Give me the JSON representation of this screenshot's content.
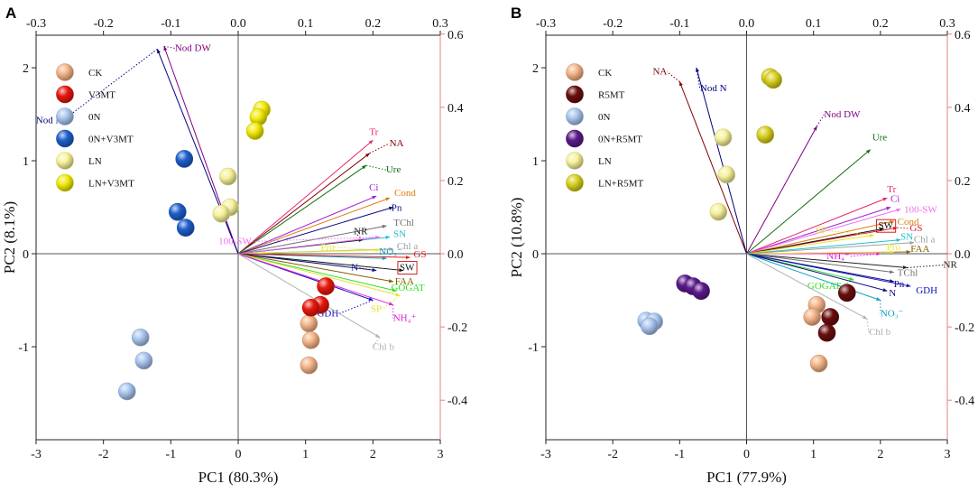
{
  "figure": {
    "panels": [
      "A",
      "B"
    ]
  },
  "chart_data": [
    {
      "type": "scatter",
      "panel": "A",
      "xlabel": "PC1 (80.3%)",
      "ylabel": "PC2 (8.1%)",
      "xlim": [
        -3,
        3
      ],
      "ylim": [
        -2,
        2.35
      ],
      "x_ticks": [
        "-3",
        "-2",
        "-1",
        "0",
        "1",
        "2",
        "3"
      ],
      "y_ticks": [
        "-1",
        "0",
        "1",
        "2"
      ],
      "top_ticks": [
        "-0.3",
        "-0.2",
        "-0.1",
        "0.0",
        "0.1",
        "0.2",
        "0.3"
      ],
      "right_ticks": [
        "-0.4",
        "-0.2",
        "0.0",
        "0.2",
        "0.4",
        "0.6"
      ],
      "legend": [
        {
          "name": "CK",
          "color": "#f4b488"
        },
        {
          "name": "V3MT",
          "color": "#e8180e"
        },
        {
          "name": "0N",
          "color": "#a9c5ee"
        },
        {
          "name": "0N+V3MT",
          "color": "#1f5fcc"
        },
        {
          "name": "LN",
          "color": "#f6f29a"
        },
        {
          "name": "LN+V3MT",
          "color": "#f2ea0a"
        }
      ],
      "groups": [
        {
          "name": "CK",
          "points": [
            [
              1.05,
              -0.75
            ],
            [
              1.08,
              -0.93
            ],
            [
              1.05,
              -1.2
            ]
          ]
        },
        {
          "name": "V3MT",
          "points": [
            [
              1.3,
              -0.35
            ],
            [
              1.22,
              -0.55
            ],
            [
              1.08,
              -0.58
            ]
          ]
        },
        {
          "name": "0N",
          "points": [
            [
              -1.45,
              -0.9
            ],
            [
              -1.4,
              -1.15
            ],
            [
              -1.65,
              -1.48
            ]
          ]
        },
        {
          "name": "0N+V3MT",
          "points": [
            [
              -0.8,
              1.02
            ],
            [
              -0.9,
              0.45
            ],
            [
              -0.78,
              0.28
            ]
          ]
        },
        {
          "name": "LN",
          "points": [
            [
              -0.15,
              0.83
            ],
            [
              -0.12,
              0.5
            ],
            [
              -0.25,
              0.43
            ]
          ]
        },
        {
          "name": "LN+V3MT",
          "points": [
            [
              0.35,
              1.55
            ],
            [
              0.3,
              1.47
            ],
            [
              0.25,
              1.32
            ]
          ]
        }
      ],
      "loadings": [
        {
          "name": "Nod DW",
          "label": "Nod DW",
          "x": -1.1,
          "y": 2.23,
          "color": "#800080",
          "dx": 12,
          "dy": 5
        },
        {
          "name": "Nod N",
          "label": "Nod N",
          "x": -1.2,
          "y": 2.2,
          "color": "#000080",
          "dx": -105,
          "dy": 82
        },
        {
          "name": "Tr",
          "label": "Tr",
          "x": 2.0,
          "y": 1.22,
          "color": "#e8246e",
          "dx": -4,
          "dy": -6
        },
        {
          "name": "NA",
          "label": "NA",
          "x": 1.95,
          "y": 1.08,
          "color": "#800000",
          "dx": 22,
          "dy": -8
        },
        {
          "name": "Ure",
          "label": "Ure",
          "x": 1.9,
          "y": 0.95,
          "color": "#107010",
          "dx": 22,
          "dy": 8
        },
        {
          "name": "Ci",
          "label": "Ci",
          "x": 2.05,
          "y": 0.62,
          "color": "#9d20d8",
          "dx": -8,
          "dy": -6
        },
        {
          "name": "Cond",
          "label": "Cond",
          "x": 2.25,
          "y": 0.6,
          "color": "#e07a10",
          "dx": 5,
          "dy": -2
        },
        {
          "name": "Pn",
          "label": "Pn",
          "x": 2.3,
          "y": 0.5,
          "color": "#101080",
          "dx": -2,
          "dy": 4
        },
        {
          "name": "TChl",
          "label": "TChl",
          "x": 2.2,
          "y": 0.3,
          "color": "#707070",
          "dx": 8,
          "dy": 0
        },
        {
          "name": "SN",
          "label": "SN",
          "x": 2.25,
          "y": 0.18,
          "color": "#20c0d0",
          "dx": 4,
          "dy": 0
        },
        {
          "name": "NR",
          "label": "NR",
          "x": 1.85,
          "y": 0.15,
          "color": "#222222",
          "dx": -10,
          "dy": -6
        },
        {
          "name": "100-SW",
          "label": "100-SW",
          "x": 2.1,
          "y": 0.18,
          "color": "#f070f0",
          "dx": -142,
          "dy": 8
        },
        {
          "name": "Chl a",
          "label": "Chl a",
          "x": 2.3,
          "y": 0.05,
          "color": "#a0a0a0",
          "dx": 4,
          "dy": 0
        },
        {
          "name": "Pro",
          "label": "Pro",
          "x": 2.1,
          "y": 0.04,
          "color": "#e8e830",
          "dx": -50,
          "dy": 0
        },
        {
          "name": "NO3-",
          "label": "NO₃⁻",
          "x": 2.2,
          "y": -0.05,
          "color": "#10a0c0",
          "dx": -8,
          "dy": -4
        },
        {
          "name": "GS",
          "label": "GS",
          "x": 2.55,
          "y": -0.04,
          "color": "#e02020",
          "dx": 4,
          "dy": 0
        },
        {
          "name": "SW",
          "label": "SW",
          "x": 2.45,
          "y": -0.18,
          "color": "#111111",
          "dx": -4,
          "dy": 0,
          "boxed": true
        },
        {
          "name": "N",
          "label": "N",
          "x": 2.05,
          "y": -0.18,
          "color": "#101080",
          "dx": -20,
          "dy": 0
        },
        {
          "name": "FAA",
          "label": "FAA",
          "x": 2.3,
          "y": -0.3,
          "color": "#806000",
          "dx": 2,
          "dy": 3
        },
        {
          "name": "GOGAT",
          "label": "GOGAT",
          "x": 2.35,
          "y": -0.4,
          "color": "#30e020",
          "dx": -6,
          "dy": 0
        },
        {
          "name": "SP",
          "label": "SP",
          "x": 2.4,
          "y": -0.45,
          "color": "#e8e030",
          "dx": -20,
          "dy": 18
        },
        {
          "name": "GDH",
          "label": "GDH",
          "x": 2.0,
          "y": -0.5,
          "color": "#1010c0",
          "dx": -38,
          "dy": 18
        },
        {
          "name": "NH4+",
          "label": "NH₄⁺",
          "x": 2.3,
          "y": -0.55,
          "color": "#e020e0",
          "dx": 0,
          "dy": 18
        },
        {
          "name": "Chl b",
          "label": "Chl b",
          "x": 2.1,
          "y": -0.9,
          "color": "#b0b0b0",
          "dx": -8,
          "dy": 14
        }
      ]
    },
    {
      "type": "scatter",
      "panel": "B",
      "xlabel": "PC1 (77.9%)",
      "ylabel": "PC2 (10.8%)",
      "xlim": [
        -3,
        3
      ],
      "ylim": [
        -2,
        2.35
      ],
      "x_ticks": [
        "-3",
        "-2",
        "-1",
        "0",
        "1",
        "2",
        "3"
      ],
      "y_ticks": [
        "-1",
        "0",
        "1",
        "2"
      ],
      "top_ticks": [
        "-0.3",
        "-0.2",
        "-0.1",
        "0.0",
        "0.1",
        "0.2",
        "0.3"
      ],
      "right_ticks": [
        "-0.4",
        "-0.2",
        "0.0",
        "0.2",
        "0.4",
        "0.6"
      ],
      "legend": [
        {
          "name": "CK",
          "color": "#f4b488"
        },
        {
          "name": "R5MT",
          "color": "#6a0e0e"
        },
        {
          "name": "0N",
          "color": "#a9c5ee"
        },
        {
          "name": "0N+R5MT",
          "color": "#5a1a8a"
        },
        {
          "name": "LN",
          "color": "#f6f29a"
        },
        {
          "name": "LN+R5MT",
          "color": "#d8d020"
        }
      ],
      "groups": [
        {
          "name": "CK",
          "points": [
            [
              1.05,
              -0.55
            ],
            [
              0.98,
              -0.68
            ],
            [
              1.08,
              -1.18
            ]
          ]
        },
        {
          "name": "R5MT",
          "points": [
            [
              1.5,
              -0.42
            ],
            [
              1.25,
              -0.68
            ],
            [
              1.2,
              -0.85
            ]
          ]
        },
        {
          "name": "0N",
          "points": [
            [
              -1.5,
              -0.72
            ],
            [
              -1.38,
              -0.73
            ],
            [
              -1.45,
              -0.78
            ]
          ]
        },
        {
          "name": "0N+R5MT",
          "points": [
            [
              -0.92,
              -0.32
            ],
            [
              -0.8,
              -0.35
            ],
            [
              -0.68,
              -0.4
            ]
          ]
        },
        {
          "name": "LN",
          "points": [
            [
              -0.35,
              1.25
            ],
            [
              -0.3,
              0.85
            ],
            [
              -0.42,
              0.45
            ]
          ]
        },
        {
          "name": "LN+R5MT",
          "points": [
            [
              0.35,
              1.9
            ],
            [
              0.4,
              1.87
            ],
            [
              0.28,
              1.28
            ]
          ]
        }
      ],
      "loadings": [
        {
          "name": "NA",
          "label": "NA",
          "x": -1.0,
          "y": 1.85,
          "color": "#800000",
          "dx": -14,
          "dy": -8
        },
        {
          "name": "Nod N",
          "label": "Nod N",
          "x": -0.75,
          "y": 2.0,
          "color": "#000080",
          "dx": 4,
          "dy": 26
        },
        {
          "name": "Nod DW",
          "label": "Nod DW",
          "x": 1.05,
          "y": 1.37,
          "color": "#800080",
          "dx": 8,
          "dy": -10
        },
        {
          "name": "Ure",
          "label": "Ure",
          "x": 1.85,
          "y": 1.12,
          "color": "#107010",
          "dx": 2,
          "dy": -10
        },
        {
          "name": "Tr",
          "label": "Tr",
          "x": 2.1,
          "y": 0.6,
          "color": "#e8246e",
          "dx": 0,
          "dy": -6
        },
        {
          "name": "Ci",
          "label": "Ci",
          "x": 2.15,
          "y": 0.5,
          "color": "#9d20d8",
          "dx": 0,
          "dy": -6
        },
        {
          "name": "100-SW",
          "label": "100-SW",
          "x": 2.3,
          "y": 0.48,
          "color": "#f070f0",
          "dx": 4,
          "dy": 4
        },
        {
          "name": "Cond",
          "label": "Cond",
          "x": 2.2,
          "y": 0.35,
          "color": "#e07a10",
          "dx": 4,
          "dy": 4
        },
        {
          "name": "GS",
          "label": "GS",
          "x": 2.25,
          "y": 0.28,
          "color": "#e02020",
          "dx": 14,
          "dy": 4
        },
        {
          "name": "SW",
          "label": "SW",
          "x": 2.05,
          "y": 0.27,
          "color": "#111111",
          "dx": -6,
          "dy": 0,
          "boxed": true
        },
        {
          "name": "SP",
          "label": "SP",
          "x": 1.9,
          "y": 0.2,
          "color": "#e8e030",
          "dx": -52,
          "dy": -2
        },
        {
          "name": "SN",
          "label": "SN",
          "x": 2.3,
          "y": 0.15,
          "color": "#20c0d0",
          "dx": 0,
          "dy": 0
        },
        {
          "name": "Chl a",
          "label": "Chl a",
          "x": 2.5,
          "y": 0.12,
          "color": "#a0a0a0",
          "dx": 0,
          "dy": 0
        },
        {
          "name": "FAA",
          "label": "FAA",
          "x": 2.45,
          "y": 0.02,
          "color": "#806000",
          "dx": 0,
          "dy": 0
        },
        {
          "name": "NH4+",
          "label": "NH₄⁺",
          "x": 2.0,
          "y": 0.0,
          "color": "#e020e0",
          "dx": -34,
          "dy": 6
        },
        {
          "name": "Pro",
          "label": "Pro",
          "x": 2.2,
          "y": 0.02,
          "color": "#e8e830",
          "dx": -8,
          "dy": -2
        },
        {
          "name": "NR",
          "label": "NR",
          "x": 2.4,
          "y": -0.15,
          "color": "#222222",
          "dx": 40,
          "dy": 0
        },
        {
          "name": "TChl",
          "label": "TChl",
          "x": 2.2,
          "y": -0.2,
          "color": "#707070",
          "dx": 4,
          "dy": 4
        },
        {
          "name": "GOGAT",
          "label": "GOGAT",
          "x": 1.6,
          "y": -0.28,
          "color": "#30e020",
          "dx": -14,
          "dy": 10
        },
        {
          "name": "Pn",
          "label": "Pn",
          "x": 2.2,
          "y": -0.3,
          "color": "#101080",
          "dx": 0,
          "dy": 6
        },
        {
          "name": "GDH",
          "label": "GDH",
          "x": 2.45,
          "y": -0.35,
          "color": "#1010c0",
          "dx": 6,
          "dy": 8
        },
        {
          "name": "N",
          "label": "N",
          "x": 2.1,
          "y": -0.4,
          "color": "#101080",
          "dx": 2,
          "dy": 6
        },
        {
          "name": "NO3-",
          "label": "NO₃⁻",
          "x": 2.0,
          "y": -0.5,
          "color": "#10a0c0",
          "dx": 0,
          "dy": 18
        },
        {
          "name": "Chl b",
          "label": "Chl b",
          "x": 1.8,
          "y": -0.7,
          "color": "#b0b0b0",
          "dx": 2,
          "dy": 18
        }
      ]
    }
  ]
}
